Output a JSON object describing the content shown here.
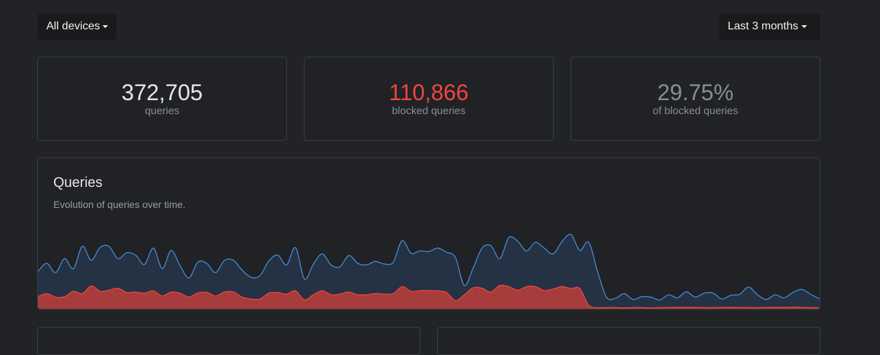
{
  "filters": {
    "devices": "All devices",
    "period": "Last 3 months"
  },
  "stats": [
    {
      "value": "372,705",
      "label": "queries",
      "color": "#e6e7e9"
    },
    {
      "value": "110,866",
      "label": "blocked queries",
      "color": "#f1453d"
    },
    {
      "value": "29.75%",
      "label": "of blocked queries",
      "color": "#8a8d92"
    }
  ],
  "chart": {
    "title": "Queries",
    "subtitle": "Evolution of queries over time."
  },
  "chart_data": {
    "type": "area",
    "title": "Queries",
    "subtitle": "Evolution of queries over time.",
    "note": "relative values, no axis printed",
    "series": [
      {
        "color": "#4a8bd4",
        "values": [
          160,
          195,
          155,
          215,
          172,
          268,
          208,
          263,
          268,
          215,
          240,
          230,
          190,
          260,
          172,
          250,
          185,
          132,
          200,
          195,
          155,
          207,
          208,
          165,
          135,
          142,
          205,
          230,
          188,
          262,
          128,
          190,
          235,
          188,
          180,
          228,
          195,
          188,
          203,
          192,
          200,
          292,
          238,
          248,
          245,
          260,
          242,
          220,
          100,
          175,
          260,
          270,
          215,
          305,
          290,
          248,
          285,
          260,
          235,
          288,
          318,
          250,
          285,
          160,
          50,
          45,
          65,
          40,
          52,
          50,
          38,
          60,
          47,
          73,
          50,
          67,
          67,
          42,
          58,
          62,
          93,
          60,
          40,
          60,
          47,
          70,
          83,
          62,
          42
        ]
      },
      {
        "color": "#f1453d",
        "values": [
          52,
          65,
          50,
          52,
          75,
          65,
          98,
          75,
          80,
          88,
          70,
          72,
          67,
          77,
          55,
          72,
          67,
          50,
          68,
          70,
          55,
          72,
          72,
          50,
          42,
          42,
          67,
          70,
          63,
          77,
          38,
          60,
          77,
          60,
          63,
          72,
          60,
          60,
          65,
          63,
          65,
          95,
          75,
          78,
          78,
          77,
          70,
          35,
          60,
          90,
          88,
          72,
          100,
          95,
          80,
          95,
          95,
          78,
          85,
          95,
          87,
          87,
          15,
          5,
          5,
          5,
          4,
          5,
          5,
          4,
          5,
          6,
          6,
          6,
          6,
          5,
          5,
          6,
          6,
          6,
          5,
          5,
          6,
          6,
          6,
          7,
          6,
          5,
          4
        ]
      }
    ]
  }
}
